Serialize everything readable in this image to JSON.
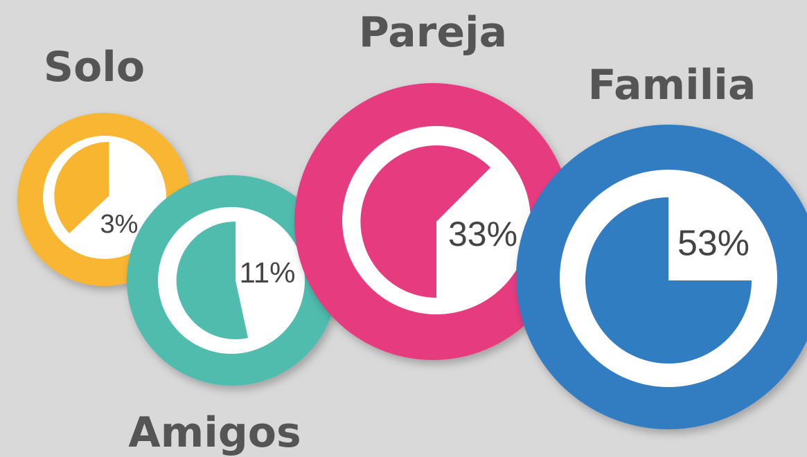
{
  "items": [
    {
      "title": "Solo",
      "percent": "3%"
    },
    {
      "title": "Amigos",
      "percent": "11%"
    },
    {
      "title": "Pareja",
      "percent": "33%"
    },
    {
      "title": "Familia",
      "percent": "53%"
    }
  ]
}
